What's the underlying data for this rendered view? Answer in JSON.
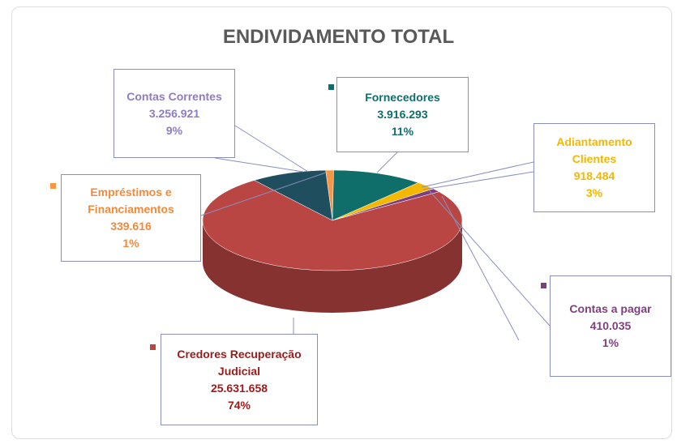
{
  "chart_data": {
    "type": "pie",
    "title": "ENDIVIDAMENTO TOTAL",
    "categories": [
      "Empréstimos e Financiamentos",
      "Fornecedores",
      "Adiantamento Clientes",
      "Contas a pagar",
      "Credores Recuperação Judicial",
      "Contas Correntes"
    ],
    "values": [
      339616,
      3916293,
      918484,
      410035,
      25631658,
      3256921
    ],
    "value_labels": [
      "339.616",
      "3.916.293",
      "918.484",
      "410.035",
      "25.631.658",
      "3.256.921"
    ],
    "percents": [
      1,
      11,
      3,
      1,
      74,
      9
    ],
    "percent_labels": [
      "1%",
      "11%",
      "3%",
      "1%",
      "74%",
      "9%"
    ],
    "colors": [
      "#f79646",
      "#0f6e6a",
      "#f5b800",
      "#7f3f7f",
      "#b94643",
      "#1f4e5f"
    ],
    "label_colors": [
      "#f08a3c",
      "#0f6e6a",
      "#f2b800",
      "#7f3f7f",
      "#9b1b1b",
      "#8e7cc3"
    ]
  }
}
